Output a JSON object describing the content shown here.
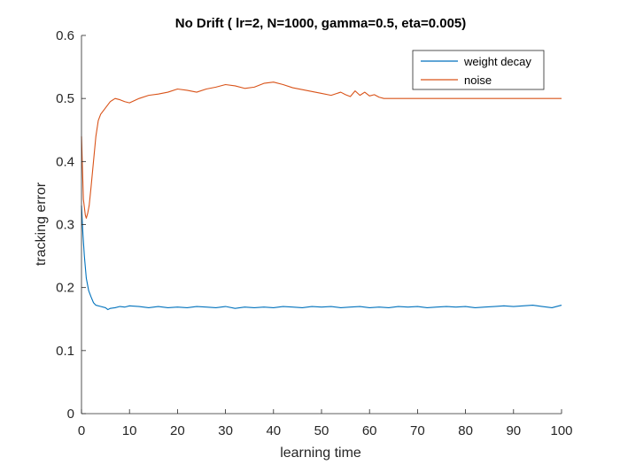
{
  "chart_data": {
    "type": "line",
    "title": "No Drift ( lr=2, N=1000, gamma=0.5, eta=0.005)",
    "xlabel": "learning time",
    "ylabel": "tracking error",
    "xlim": [
      0,
      100
    ],
    "ylim": [
      0,
      0.6
    ],
    "xticks": [
      "0",
      "10",
      "20",
      "30",
      "40",
      "50",
      "60",
      "70",
      "80",
      "90",
      "100"
    ],
    "yticks": [
      "0",
      "0.1",
      "0.2",
      "0.3",
      "0.4",
      "0.5",
      "0.6"
    ],
    "grid": false,
    "legend_position": "top-right",
    "series": [
      {
        "name": "weight decay",
        "color": "#0072BD",
        "x": [
          0,
          0.3,
          0.6,
          1,
          1.5,
          2,
          2.5,
          3,
          4,
          5,
          5.5,
          6,
          7,
          8,
          9,
          10,
          12,
          14,
          16,
          18,
          20,
          22,
          24,
          26,
          28,
          30,
          32,
          34,
          36,
          38,
          40,
          42,
          44,
          46,
          48,
          50,
          52,
          54,
          56,
          58,
          60,
          62,
          64,
          66,
          68,
          70,
          72,
          74,
          76,
          78,
          80,
          82,
          84,
          86,
          88,
          90,
          92,
          94,
          96,
          98,
          100
        ],
        "values": [
          0.33,
          0.285,
          0.25,
          0.215,
          0.195,
          0.185,
          0.176,
          0.172,
          0.17,
          0.168,
          0.165,
          0.167,
          0.168,
          0.17,
          0.169,
          0.171,
          0.17,
          0.168,
          0.17,
          0.168,
          0.169,
          0.168,
          0.17,
          0.169,
          0.168,
          0.17,
          0.167,
          0.169,
          0.168,
          0.169,
          0.168,
          0.17,
          0.169,
          0.168,
          0.17,
          0.169,
          0.17,
          0.168,
          0.169,
          0.17,
          0.168,
          0.169,
          0.168,
          0.17,
          0.169,
          0.17,
          0.168,
          0.169,
          0.17,
          0.169,
          0.17,
          0.168,
          0.169,
          0.17,
          0.171,
          0.17,
          0.171,
          0.172,
          0.17,
          0.168,
          0.172
        ]
      },
      {
        "name": "noise",
        "color": "#D95319",
        "x": [
          0,
          0.4,
          0.8,
          1,
          1.3,
          1.6,
          2,
          2.5,
          3,
          3.5,
          4,
          5,
          6,
          7,
          8,
          9,
          10,
          12,
          14,
          16,
          18,
          20,
          22,
          24,
          26,
          28,
          30,
          32,
          34,
          36,
          38,
          40,
          42,
          44,
          46,
          48,
          50,
          52,
          54,
          55,
          56,
          57,
          58,
          59,
          60,
          61,
          62,
          63,
          64,
          70,
          80,
          90,
          100
        ],
        "values": [
          0.44,
          0.34,
          0.315,
          0.31,
          0.318,
          0.33,
          0.36,
          0.4,
          0.44,
          0.465,
          0.475,
          0.485,
          0.495,
          0.5,
          0.498,
          0.495,
          0.493,
          0.5,
          0.505,
          0.507,
          0.51,
          0.515,
          0.513,
          0.51,
          0.515,
          0.518,
          0.522,
          0.52,
          0.516,
          0.518,
          0.524,
          0.526,
          0.522,
          0.517,
          0.514,
          0.511,
          0.508,
          0.505,
          0.51,
          0.506,
          0.503,
          0.512,
          0.505,
          0.51,
          0.504,
          0.506,
          0.502,
          0.5,
          0.5,
          0.5,
          0.5,
          0.5,
          0.5
        ]
      }
    ]
  }
}
